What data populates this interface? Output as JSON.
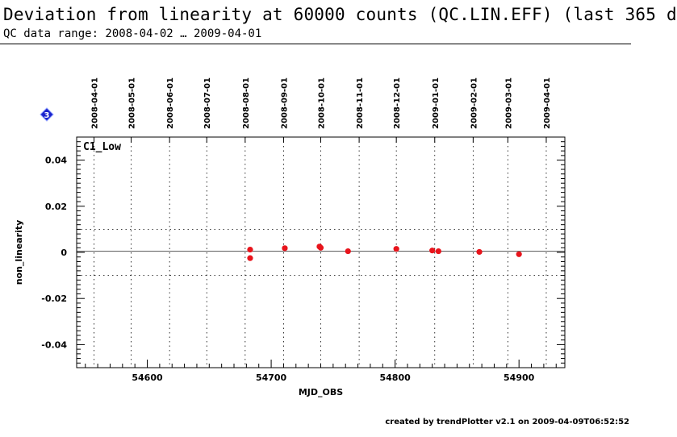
{
  "header": {
    "title": "Deviation from linearity at 60000 counts (QC.LIN.EFF) (last 365 d",
    "subtitle": "QC data range: 2008-04-02 … 2009-04-01"
  },
  "footer": {
    "text": "created by trendPlotter v2.1 on 2009-04-09T06:52:52"
  },
  "marker": {
    "label": "3",
    "color": "#1a22cc"
  },
  "colors": {
    "points": "#e8141c",
    "axes": "#000000"
  },
  "chart_data": {
    "type": "scatter",
    "panel_label": "C1_Low",
    "xlabel": "MJD_OBS",
    "ylabel": "non_linearity",
    "xlim": [
      54543,
      54937
    ],
    "ylim": [
      -0.05,
      0.05
    ],
    "x_ticks": [
      54600,
      54700,
      54800,
      54900
    ],
    "x_tick_labels": [
      "54600",
      "54700",
      "54800",
      "54900"
    ],
    "y_ticks": [
      0.04,
      0.02,
      0,
      -0.02,
      -0.04
    ],
    "y_tick_labels": [
      "0.04",
      "0.02",
      "0",
      "-0.02",
      "-0.04"
    ],
    "date_ticks": [
      {
        "mjd": 54557,
        "label": "2008-04-01"
      },
      {
        "mjd": 54587,
        "label": "2008-05-01"
      },
      {
        "mjd": 54618,
        "label": "2008-06-01"
      },
      {
        "mjd": 54648,
        "label": "2008-07-01"
      },
      {
        "mjd": 54679,
        "label": "2008-08-01"
      },
      {
        "mjd": 54710,
        "label": "2008-09-01"
      },
      {
        "mjd": 54740,
        "label": "2008-10-01"
      },
      {
        "mjd": 54771,
        "label": "2008-11-01"
      },
      {
        "mjd": 54801,
        "label": "2008-12-01"
      },
      {
        "mjd": 54832,
        "label": "2009-01-01"
      },
      {
        "mjd": 54863,
        "label": "2009-02-01"
      },
      {
        "mjd": 54891,
        "label": "2009-03-01"
      },
      {
        "mjd": 54922,
        "label": "2009-04-01"
      }
    ],
    "reference_lines": {
      "solid": [
        0.0005
      ],
      "dotted": [
        0.01,
        -0.01
      ]
    },
    "grid": "vertical dotted at month boundaries",
    "points": [
      {
        "x": 54683,
        "y": 0.0012
      },
      {
        "x": 54683,
        "y": -0.0025
      },
      {
        "x": 54711,
        "y": 0.0018
      },
      {
        "x": 54739,
        "y": 0.0025
      },
      {
        "x": 54740,
        "y": 0.002
      },
      {
        "x": 54762,
        "y": 0.0005
      },
      {
        "x": 54801,
        "y": 0.0015
      },
      {
        "x": 54830,
        "y": 0.0008
      },
      {
        "x": 54835,
        "y": 0.0005
      },
      {
        "x": 54868,
        "y": 0.0002
      },
      {
        "x": 54900,
        "y": -0.0008
      }
    ]
  }
}
